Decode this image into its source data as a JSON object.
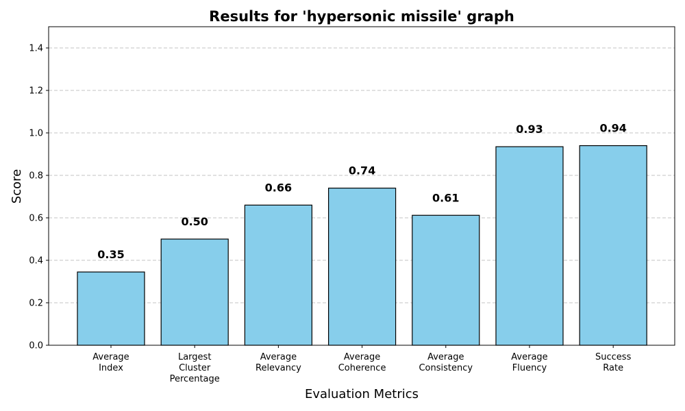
{
  "chart_data": {
    "type": "bar",
    "title": "Results for 'hypersonic missile' graph",
    "xlabel": "Evaluation Metrics",
    "ylabel": "Score",
    "ylim": [
      0,
      1.5
    ],
    "yticks": [
      0.0,
      0.2,
      0.4,
      0.6,
      0.8,
      1.0,
      1.2,
      1.4
    ],
    "ytick_labels": [
      "0.0",
      "0.2",
      "0.4",
      "0.6",
      "0.8",
      "1.0",
      "1.2",
      "1.4"
    ],
    "grid": "y-dashed",
    "bar_color": "#87ceeb",
    "categories": [
      [
        "Average",
        "Index"
      ],
      [
        "Largest",
        "Cluster",
        "Percentage"
      ],
      [
        "Average",
        "Relevancy"
      ],
      [
        "Average",
        "Coherence"
      ],
      [
        "Average",
        "Consistency"
      ],
      [
        "Average",
        "Fluency"
      ],
      [
        "Success",
        "Rate"
      ]
    ],
    "values": [
      0.345,
      0.5,
      0.66,
      0.74,
      0.612,
      0.935,
      0.94
    ],
    "value_labels": [
      "0.35",
      "0.50",
      "0.66",
      "0.74",
      "0.61",
      "0.93",
      "0.94"
    ]
  }
}
